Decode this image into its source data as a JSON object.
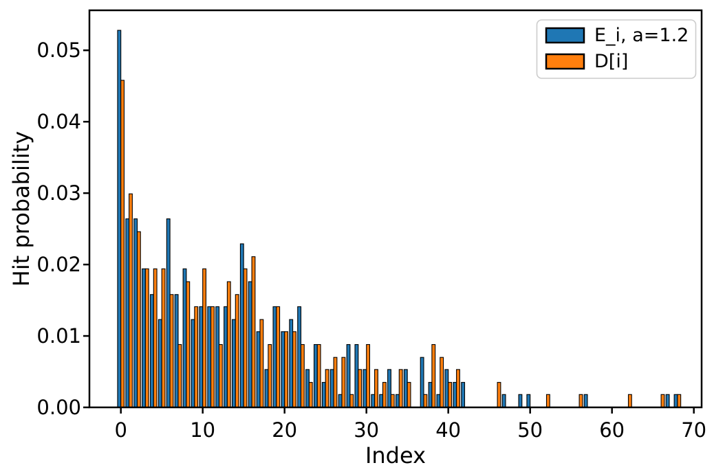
{
  "figure": {
    "background": "#ffffff",
    "text_color": "#000000"
  },
  "chart_data": {
    "type": "bar",
    "title": "",
    "xlabel": "Index",
    "ylabel": "Hit probability",
    "x": [
      0,
      1,
      2,
      3,
      4,
      5,
      6,
      7,
      8,
      9,
      10,
      11,
      12,
      13,
      14,
      15,
      16,
      17,
      18,
      19,
      20,
      21,
      22,
      23,
      24,
      25,
      26,
      27,
      28,
      29,
      30,
      31,
      32,
      33,
      34,
      35,
      36,
      37,
      38,
      39,
      40,
      41,
      42,
      43,
      44,
      45,
      46,
      47,
      48,
      49,
      50,
      51,
      52,
      53,
      54,
      55,
      56,
      57,
      58,
      59,
      60,
      61,
      62,
      63,
      64,
      65,
      66,
      67,
      68,
      69
    ],
    "series": [
      {
        "name": "E_i, a=1.2",
        "color": "#1f77b4",
        "values": [
          0.0528,
          0.0264,
          0.0264,
          0.0194,
          0.0158,
          0.0123,
          0.0264,
          0.0158,
          0.0194,
          0.0123,
          0.0141,
          0.0141,
          0.0141,
          0.0141,
          0.0123,
          0.0229,
          0.0176,
          0.0106,
          0.0053,
          0.0141,
          0.0106,
          0.0123,
          0.0141,
          0.0053,
          0.0088,
          0.0035,
          0.0053,
          0.0018,
          0.0088,
          0.0088,
          0.0053,
          0.0018,
          0.0018,
          0.0053,
          0.0018,
          0.0053,
          0,
          0.007,
          0.0035,
          0.0018,
          0.0053,
          0.0035,
          0.0035,
          0,
          0,
          0,
          0,
          0.0018,
          0,
          0.0018,
          0.0018,
          0,
          0,
          0,
          0,
          0,
          0,
          0.0018,
          0,
          0,
          0,
          0,
          0,
          0,
          0,
          0,
          0,
          0.0018,
          0.0018,
          0
        ]
      },
      {
        "name": "D[i]",
        "color": "#ff7f0e",
        "values": [
          0.0458,
          0.0299,
          0.0246,
          0.0194,
          0.0194,
          0.0194,
          0.0158,
          0.0088,
          0.0176,
          0.0141,
          0.0194,
          0.0141,
          0.0088,
          0.0176,
          0.0158,
          0.0194,
          0.0211,
          0.0123,
          0.0088,
          0.0141,
          0.0106,
          0.0106,
          0.0088,
          0.0035,
          0.0088,
          0.0053,
          0.007,
          0.007,
          0.0018,
          0.0053,
          0.0088,
          0.0053,
          0.0035,
          0.0018,
          0.0053,
          0.0035,
          0,
          0.0018,
          0.0088,
          0.007,
          0.0035,
          0.0053,
          0,
          0,
          0,
          0,
          0.0035,
          0,
          0,
          0,
          0,
          0,
          0.0018,
          0,
          0,
          0,
          0.0018,
          0,
          0,
          0,
          0,
          0,
          0.0018,
          0,
          0,
          0,
          0.0018,
          0,
          0.0018,
          0
        ]
      }
    ],
    "bar_width": 0.4,
    "bar_edge_color": "#000000",
    "xlim": [
      -3.84,
      70.95
    ],
    "ylim": [
      0,
      0.0556
    ],
    "xticks": {
      "values": [
        0,
        10,
        20,
        30,
        40,
        50,
        60,
        70
      ],
      "labels": [
        "0",
        "10",
        "20",
        "30",
        "40",
        "50",
        "60",
        "70"
      ]
    },
    "yticks": {
      "values": [
        0,
        0.01,
        0.02,
        0.03,
        0.04,
        0.05
      ],
      "labels": [
        "0.00",
        "0.01",
        "0.02",
        "0.03",
        "0.04",
        "0.05"
      ]
    },
    "grid": false,
    "legend": {
      "position": "upper right",
      "entries": [
        "E_i, a=1.2",
        "D[i]"
      ]
    }
  }
}
